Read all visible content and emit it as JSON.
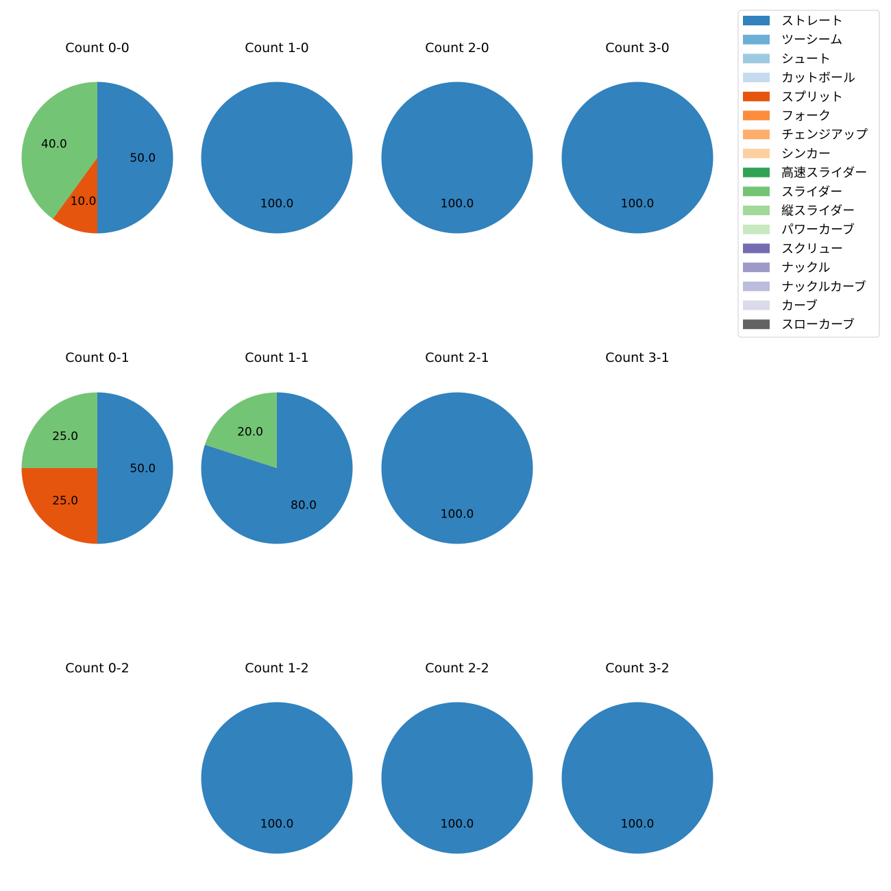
{
  "chart_data": {
    "type": "pie",
    "start_angle_deg": 90,
    "direction": "clockwise",
    "pitch_types": [
      {
        "name": "ストレート",
        "color": "#3182bd"
      },
      {
        "name": "ツーシーム",
        "color": "#6baed6"
      },
      {
        "name": "シュート",
        "color": "#9ecae1"
      },
      {
        "name": "カットボール",
        "color": "#c6dbef"
      },
      {
        "name": "スプリット",
        "color": "#e6550d"
      },
      {
        "name": "フォーク",
        "color": "#fd8d3c"
      },
      {
        "name": "チェンジアップ",
        "color": "#fdae6b"
      },
      {
        "name": "シンカー",
        "color": "#fdd0a2"
      },
      {
        "name": "高速スライダー",
        "color": "#31a354"
      },
      {
        "name": "スライダー",
        "color": "#74c476"
      },
      {
        "name": "縦スライダー",
        "color": "#a1d99b"
      },
      {
        "name": "パワーカーブ",
        "color": "#c7e9c0"
      },
      {
        "name": "スクリュー",
        "color": "#756bb1"
      },
      {
        "name": "ナックル",
        "color": "#9e9ac8"
      },
      {
        "name": "ナックルカーブ",
        "color": "#bcbddc"
      },
      {
        "name": "カーブ",
        "color": "#dadaeb"
      },
      {
        "name": "スローカーブ",
        "color": "#636363"
      }
    ],
    "panels": [
      {
        "title": "Count 0-0",
        "slices": [
          {
            "pitch": "ストレート",
            "value": 50.0,
            "label": "50.0"
          },
          {
            "pitch": "スプリット",
            "value": 10.0,
            "label": "10.0"
          },
          {
            "pitch": "スライダー",
            "value": 40.0,
            "label": "40.0"
          }
        ]
      },
      {
        "title": "Count 1-0",
        "slices": [
          {
            "pitch": "ストレート",
            "value": 100.0,
            "label": "100.0"
          }
        ]
      },
      {
        "title": "Count 2-0",
        "slices": [
          {
            "pitch": "ストレート",
            "value": 100.0,
            "label": "100.0"
          }
        ]
      },
      {
        "title": "Count 3-0",
        "slices": [
          {
            "pitch": "ストレート",
            "value": 100.0,
            "label": "100.0"
          }
        ]
      },
      {
        "title": "Count 0-1",
        "slices": [
          {
            "pitch": "ストレート",
            "value": 50.0,
            "label": "50.0"
          },
          {
            "pitch": "スプリット",
            "value": 25.0,
            "label": "25.0"
          },
          {
            "pitch": "スライダー",
            "value": 25.0,
            "label": "25.0"
          }
        ]
      },
      {
        "title": "Count 1-1",
        "slices": [
          {
            "pitch": "ストレート",
            "value": 80.0,
            "label": "80.0"
          },
          {
            "pitch": "スライダー",
            "value": 20.0,
            "label": "20.0"
          }
        ]
      },
      {
        "title": "Count 2-1",
        "slices": [
          {
            "pitch": "ストレート",
            "value": 100.0,
            "label": "100.0"
          }
        ]
      },
      {
        "title": "Count 3-1",
        "slices": []
      },
      {
        "title": "Count 0-2",
        "slices": []
      },
      {
        "title": "Count 1-2",
        "slices": [
          {
            "pitch": "ストレート",
            "value": 100.0,
            "label": "100.0"
          }
        ]
      },
      {
        "title": "Count 2-2",
        "slices": [
          {
            "pitch": "ストレート",
            "value": 100.0,
            "label": "100.0"
          }
        ]
      },
      {
        "title": "Count 3-2",
        "slices": [
          {
            "pitch": "ストレート",
            "value": 100.0,
            "label": "100.0"
          }
        ]
      }
    ]
  }
}
